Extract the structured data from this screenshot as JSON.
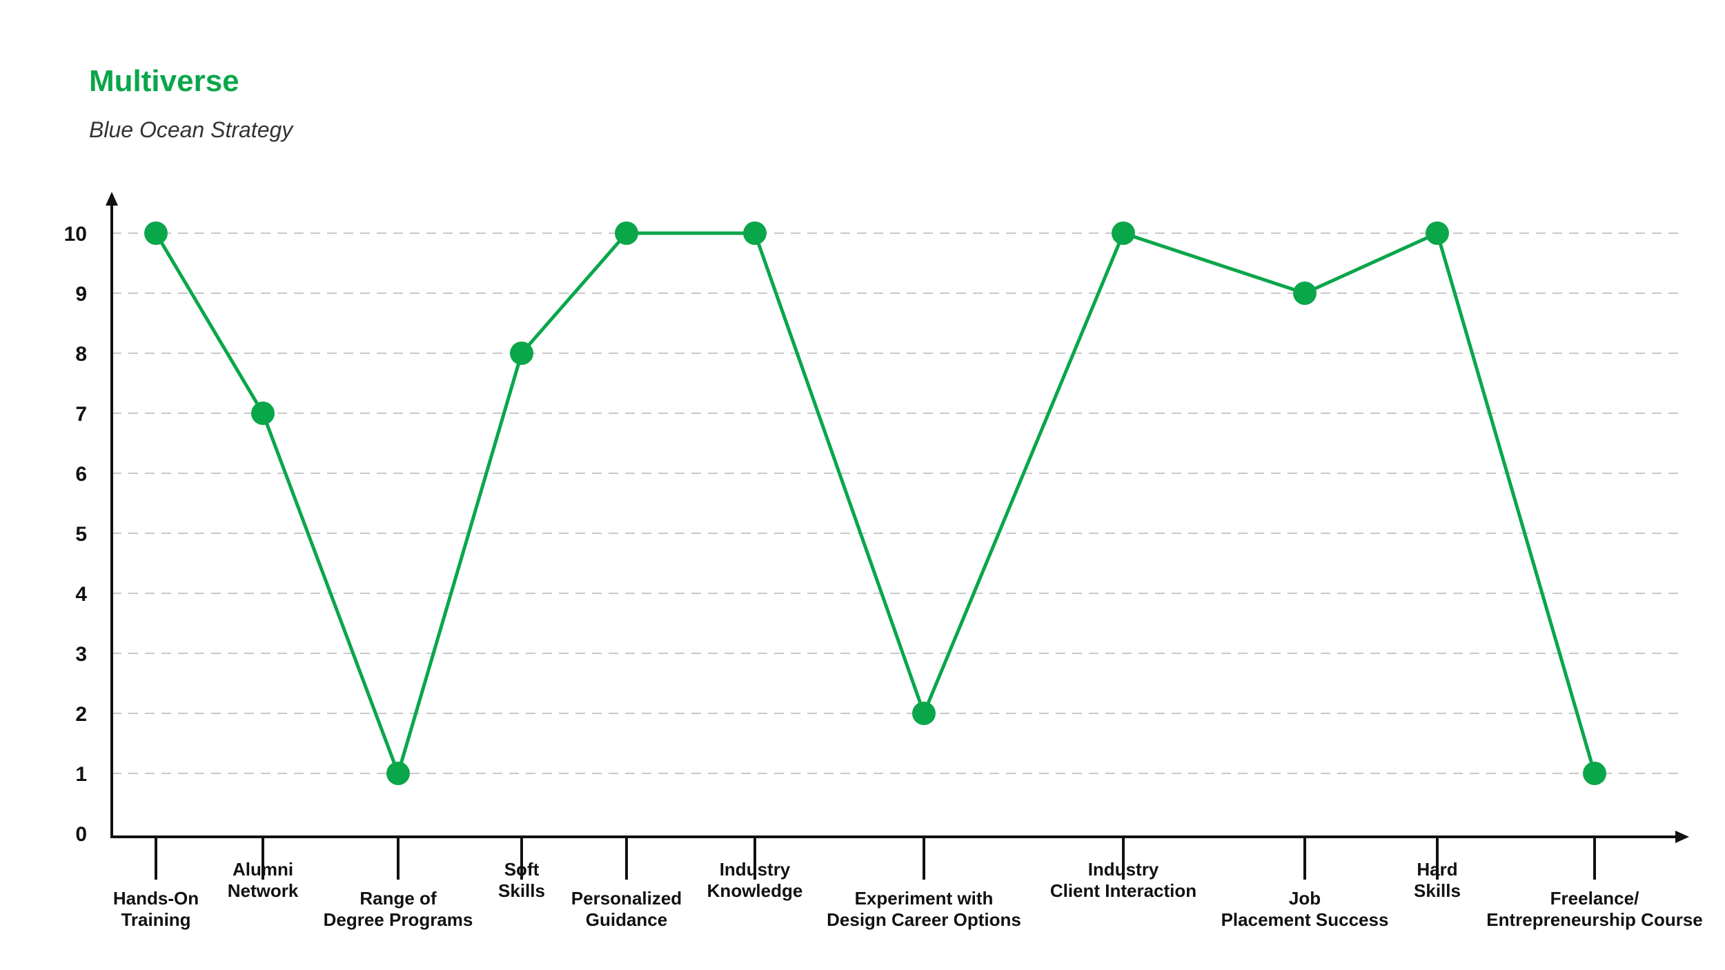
{
  "colors": {
    "accent": "#0aa64a",
    "axis": "#111111",
    "grid": "#c8c8c8"
  },
  "chart_data": {
    "type": "line",
    "title": "Multiverse",
    "subtitle": "Blue Ocean Strategy",
    "xlabel": "",
    "ylabel": "",
    "ylim": [
      0,
      10
    ],
    "yticks": [
      0,
      1,
      2,
      3,
      4,
      5,
      6,
      7,
      8,
      9,
      10
    ],
    "grid": true,
    "categories": [
      [
        "Hands-On",
        "Training"
      ],
      [
        "Alumni",
        "Network"
      ],
      [
        "Range of",
        "Degree Programs"
      ],
      [
        "Soft",
        "Skills"
      ],
      [
        "Personalized",
        "Guidance"
      ],
      [
        "Industry",
        "Knowledge"
      ],
      [
        "Experiment with",
        "Design Career Options"
      ],
      [
        "Industry",
        "Client Interaction"
      ],
      [
        "Job",
        "Placement Success"
      ],
      [
        "Hard",
        "Skills"
      ],
      [
        "Freelance/",
        "Entrepreneurship Course"
      ]
    ],
    "series": [
      {
        "values": [
          10,
          7,
          1,
          8,
          10,
          10,
          2,
          10,
          9,
          10,
          1
        ]
      }
    ]
  }
}
